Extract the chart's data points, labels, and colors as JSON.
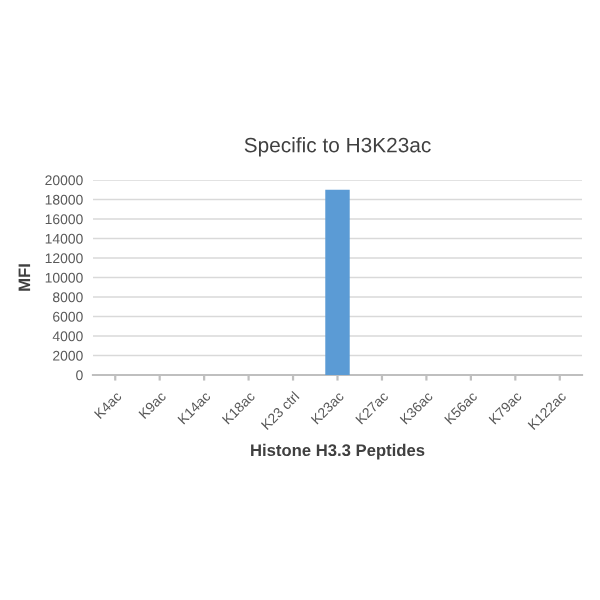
{
  "chart_data": {
    "type": "bar",
    "title": "Specific to H3K23ac",
    "xlabel": "Histone H3.3 Peptides",
    "ylabel": "MFI",
    "categories": [
      "K4ac",
      "K9ac",
      "K14ac",
      "K18ac",
      "K23 ctrl",
      "K23ac",
      "K27ac",
      "K36ac",
      "K56ac",
      "K79ac",
      "K122ac"
    ],
    "values": [
      0,
      0,
      0,
      0,
      0,
      19000,
      0,
      0,
      0,
      0,
      0
    ],
    "color": "#5b9bd5",
    "ylim": [
      0,
      20000
    ],
    "yticks": [
      0,
      2000,
      4000,
      6000,
      8000,
      10000,
      12000,
      14000,
      16000,
      18000,
      20000
    ],
    "grid": "y",
    "legend": false
  }
}
